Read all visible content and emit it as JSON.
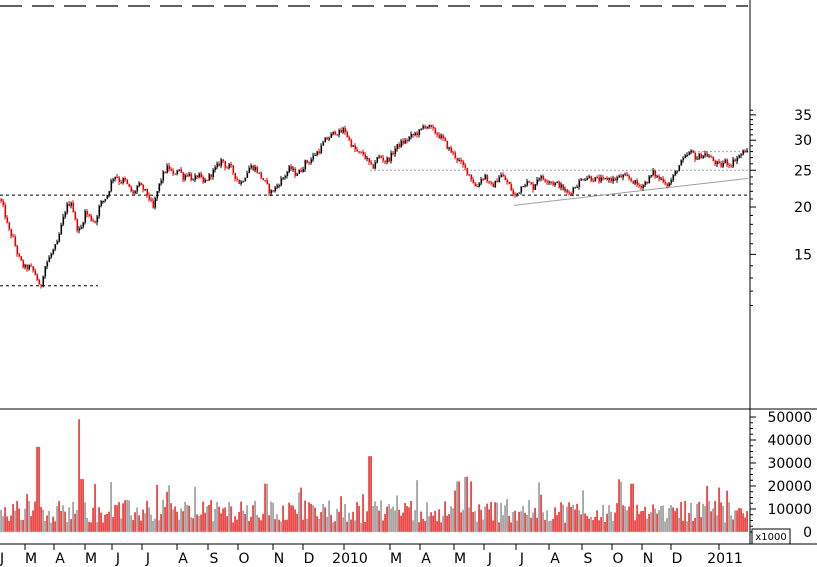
{
  "chart_data": [
    {
      "panel": "price",
      "type": "candlestick",
      "title": "",
      "y_scale": "log",
      "ylim": [
        11,
        36
      ],
      "y_ticks": [
        15,
        20,
        25,
        30,
        35
      ],
      "x_labels": [
        "J",
        "M",
        "A",
        "M",
        "J",
        "J",
        "A",
        "S",
        "O",
        "N",
        "D",
        "2010",
        "M",
        "A",
        "M",
        "J",
        "J",
        "A",
        "S",
        "O",
        "N",
        "D",
        "2011"
      ],
      "grid": false,
      "up_color": "#000000",
      "down_color": "#e00000",
      "path_points": [
        [
          0,
          21.0
        ],
        [
          4,
          19.5
        ],
        [
          8,
          17.5
        ],
        [
          13,
          16.5
        ],
        [
          18,
          14.8
        ],
        [
          24,
          13.8
        ],
        [
          30,
          13.9
        ],
        [
          36,
          13.2
        ],
        [
          40,
          12.0
        ],
        [
          44,
          13.8
        ],
        [
          48,
          14.5
        ],
        [
          52,
          15.2
        ],
        [
          57,
          16.0
        ],
        [
          62,
          18.2
        ],
        [
          66,
          20.0
        ],
        [
          71,
          20.7
        ],
        [
          76,
          17.8
        ],
        [
          80,
          17.2
        ],
        [
          85,
          19.4
        ],
        [
          90,
          18.7
        ],
        [
          95,
          18.3
        ],
        [
          100,
          20.4
        ],
        [
          104,
          20.9
        ],
        [
          108,
          21.8
        ],
        [
          112,
          23.8
        ],
        [
          116,
          24.3
        ],
        [
          120,
          23.2
        ],
        [
          124,
          23.7
        ],
        [
          128,
          22.6
        ],
        [
          133,
          21.6
        ],
        [
          138,
          22.9
        ],
        [
          143,
          22.3
        ],
        [
          148,
          21.4
        ],
        [
          153,
          19.8
        ],
        [
          158,
          22.5
        ],
        [
          163,
          24.4
        ],
        [
          168,
          25.6
        ],
        [
          173,
          24.2
        ],
        [
          178,
          25.4
        ],
        [
          183,
          24.0
        ],
        [
          188,
          24.6
        ],
        [
          193,
          23.4
        ],
        [
          198,
          24.4
        ],
        [
          203,
          23.1
        ],
        [
          208,
          23.9
        ],
        [
          213,
          24.8
        ],
        [
          218,
          25.8
        ],
        [
          222,
          26.8
        ],
        [
          226,
          25.4
        ],
        [
          230,
          25.6
        ],
        [
          235,
          24.1
        ],
        [
          240,
          23.0
        ],
        [
          245,
          24.2
        ],
        [
          250,
          25.6
        ],
        [
          255,
          25.3
        ],
        [
          260,
          24.2
        ],
        [
          265,
          23.2
        ],
        [
          270,
          21.8
        ],
        [
          275,
          22.4
        ],
        [
          280,
          23.4
        ],
        [
          285,
          24.3
        ],
        [
          290,
          25.4
        ],
        [
          295,
          24.5
        ],
        [
          300,
          24.8
        ],
        [
          305,
          26.2
        ],
        [
          310,
          26.5
        ],
        [
          315,
          27.6
        ],
        [
          320,
          28.4
        ],
        [
          325,
          30.0
        ],
        [
          330,
          30.7
        ],
        [
          335,
          31.6
        ],
        [
          340,
          31.3
        ],
        [
          344,
          32.2
        ],
        [
          348,
          30.3
        ],
        [
          353,
          28.7
        ],
        [
          358,
          27.7
        ],
        [
          363,
          27.6
        ],
        [
          368,
          26.3
        ],
        [
          372,
          25.2
        ],
        [
          376,
          26.7
        ],
        [
          380,
          27.2
        ],
        [
          385,
          26.4
        ],
        [
          390,
          27.0
        ],
        [
          395,
          28.5
        ],
        [
          400,
          29.4
        ],
        [
          405,
          29.8
        ],
        [
          410,
          30.6
        ],
        [
          415,
          31.2
        ],
        [
          420,
          31.6
        ],
        [
          424,
          32.9
        ],
        [
          428,
          32.6
        ],
        [
          433,
          31.8
        ],
        [
          438,
          31.0
        ],
        [
          443,
          30.1
        ],
        [
          448,
          28.6
        ],
        [
          453,
          27.6
        ],
        [
          458,
          26.6
        ],
        [
          463,
          25.6
        ],
        [
          468,
          24.6
        ],
        [
          472,
          23.6
        ],
        [
          476,
          22.4
        ],
        [
          480,
          23.6
        ],
        [
          485,
          24.2
        ],
        [
          490,
          22.6
        ],
        [
          495,
          23.1
        ],
        [
          500,
          24.4
        ],
        [
          505,
          23.6
        ],
        [
          510,
          22.6
        ],
        [
          514,
          21.2
        ],
        [
          518,
          21.9
        ],
        [
          523,
          23.1
        ],
        [
          528,
          23.2
        ],
        [
          533,
          22.5
        ],
        [
          538,
          24.1
        ],
        [
          543,
          23.7
        ],
        [
          548,
          23.6
        ],
        [
          553,
          23.1
        ],
        [
          558,
          23.0
        ],
        [
          563,
          22.3
        ],
        [
          568,
          21.6
        ],
        [
          573,
          22.4
        ],
        [
          578,
          23.1
        ],
        [
          583,
          23.9
        ],
        [
          588,
          24.0
        ],
        [
          593,
          23.7
        ],
        [
          598,
          23.6
        ],
        [
          603,
          23.5
        ],
        [
          608,
          23.8
        ],
        [
          613,
          23.6
        ],
        [
          618,
          23.9
        ],
        [
          623,
          24.1
        ],
        [
          628,
          23.8
        ],
        [
          633,
          23.4
        ],
        [
          638,
          22.7
        ],
        [
          643,
          22.9
        ],
        [
          648,
          23.6
        ],
        [
          653,
          24.6
        ],
        [
          658,
          23.8
        ],
        [
          663,
          23.6
        ],
        [
          668,
          22.8
        ],
        [
          673,
          24.0
        ],
        [
          678,
          25.5
        ],
        [
          683,
          26.6
        ],
        [
          688,
          27.6
        ],
        [
          692,
          27.9
        ],
        [
          696,
          26.8
        ],
        [
          700,
          27.3
        ],
        [
          705,
          27.6
        ],
        [
          710,
          27.0
        ],
        [
          715,
          26.2
        ],
        [
          720,
          25.6
        ],
        [
          725,
          26.4
        ],
        [
          730,
          25.8
        ],
        [
          735,
          26.8
        ],
        [
          740,
          27.4
        ],
        [
          745,
          28.2
        ],
        [
          748,
          27.6
        ]
      ],
      "annotations": [
        {
          "kind": "horizontal-dashed",
          "value": 21.5,
          "from_x": 0,
          "to_x": 748
        },
        {
          "kind": "horizontal-dashed",
          "value": 12.4,
          "from_x": 0,
          "to_x": 98
        },
        {
          "kind": "horizontal-dotted",
          "value": 25.0,
          "from_x": 370,
          "to_x": 748
        },
        {
          "kind": "horizontal-dotted",
          "value": 28.0,
          "from_x": 690,
          "to_x": 748
        },
        {
          "kind": "trendline",
          "points": [
            [
              514,
              20.2
            ],
            [
              748,
              23.8
            ]
          ]
        }
      ]
    },
    {
      "panel": "volume",
      "type": "bar",
      "unit_label": "x1000",
      "ylim": [
        0,
        55000
      ],
      "y_ticks": [
        0,
        10000,
        20000,
        30000,
        40000,
        50000
      ],
      "colors": [
        "#e00000",
        "#808080"
      ],
      "spikes": [
        {
          "x": 38,
          "value": 37000
        },
        {
          "x": 79,
          "value": 49000
        },
        {
          "x": 82,
          "value": 23000
        },
        {
          "x": 266,
          "value": 21000
        },
        {
          "x": 370,
          "value": 33000
        },
        {
          "x": 458,
          "value": 22000
        },
        {
          "x": 466,
          "value": 24000
        },
        {
          "x": 471,
          "value": 22000
        },
        {
          "x": 632,
          "value": 21000
        },
        {
          "x": 727,
          "value": 18000
        }
      ],
      "baseline_range": [
        4000,
        14000
      ]
    }
  ]
}
